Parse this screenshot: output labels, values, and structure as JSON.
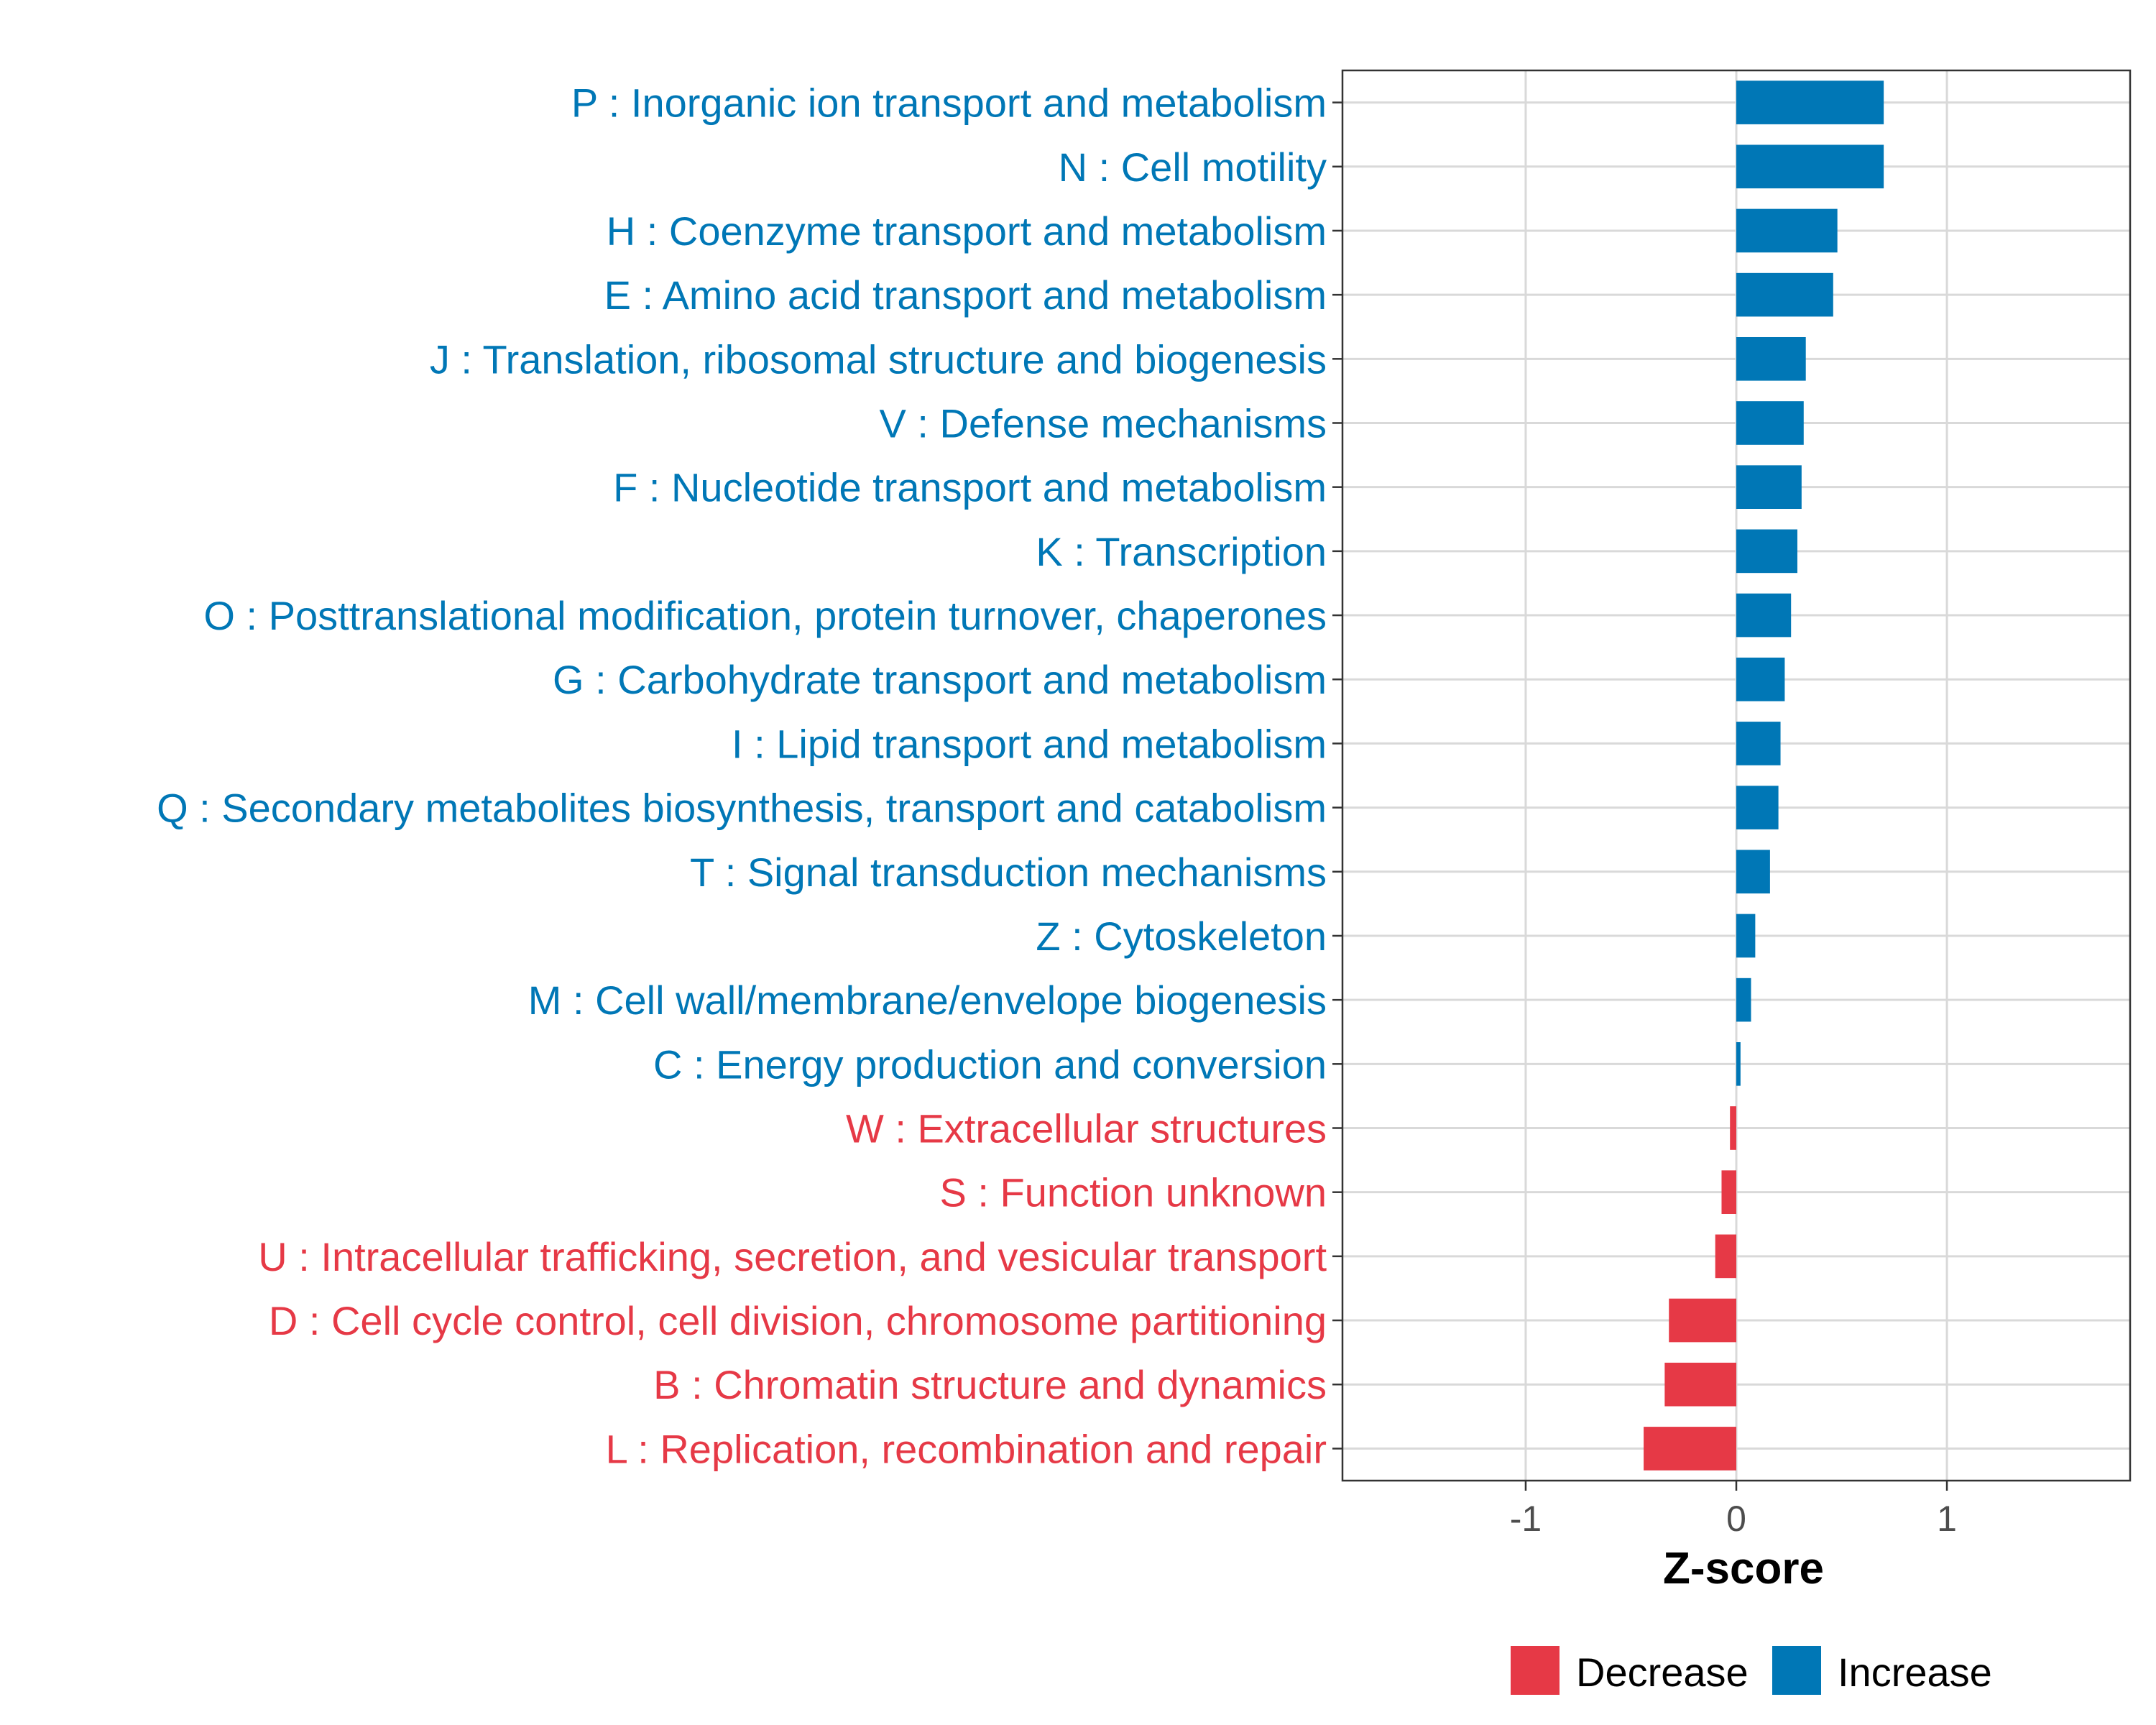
{
  "chart_data": {
    "type": "bar",
    "orientation": "horizontal",
    "title": "",
    "xlabel": "Z-score",
    "ylabel": "",
    "xlim": [
      -1.87,
      1.87
    ],
    "xticks": [
      -1,
      0,
      1
    ],
    "xtick_labels": [
      "-1",
      "0",
      "1"
    ],
    "grid": true,
    "legend_position": "bottom",
    "colors": {
      "Decrease": "#E63946",
      "Increase": "#0077B6"
    },
    "legend": [
      {
        "name": "Decrease",
        "color": "#E63946"
      },
      {
        "name": "Increase",
        "color": "#0077B6"
      }
    ],
    "categories": [
      "P : Inorganic ion transport and metabolism",
      "N : Cell motility",
      "H : Coenzyme transport and metabolism",
      "E : Amino acid transport and metabolism",
      "J : Translation, ribosomal structure and biogenesis",
      "V : Defense mechanisms",
      "F : Nucleotide transport and metabolism",
      "K : Transcription",
      "O : Posttranslational modification, protein turnover, chaperones",
      "G : Carbohydrate transport and metabolism",
      "I : Lipid transport and metabolism",
      "Q : Secondary metabolites biosynthesis, transport and catabolism",
      "T : Signal transduction mechanisms",
      "Z : Cytoskeleton",
      "M : Cell wall/membrane/envelope biogenesis",
      "C : Energy production and conversion",
      "W : Extracellular structures",
      "S : Function unknown",
      "U : Intracellular trafficking, secretion, and vesicular transport",
      "D : Cell cycle control, cell division, chromosome partitioning",
      "B : Chromatin structure and dynamics",
      "L : Replication, recombination and repair"
    ],
    "values": [
      0.7,
      0.7,
      0.48,
      0.46,
      0.33,
      0.32,
      0.31,
      0.29,
      0.26,
      0.23,
      0.21,
      0.2,
      0.16,
      0.09,
      0.07,
      0.02,
      -0.03,
      -0.07,
      -0.1,
      -0.32,
      -0.34,
      -0.44
    ],
    "groups": [
      "Increase",
      "Increase",
      "Increase",
      "Increase",
      "Increase",
      "Increase",
      "Increase",
      "Increase",
      "Increase",
      "Increase",
      "Increase",
      "Increase",
      "Increase",
      "Increase",
      "Increase",
      "Increase",
      "Decrease",
      "Decrease",
      "Decrease",
      "Decrease",
      "Decrease",
      "Decrease"
    ]
  }
}
